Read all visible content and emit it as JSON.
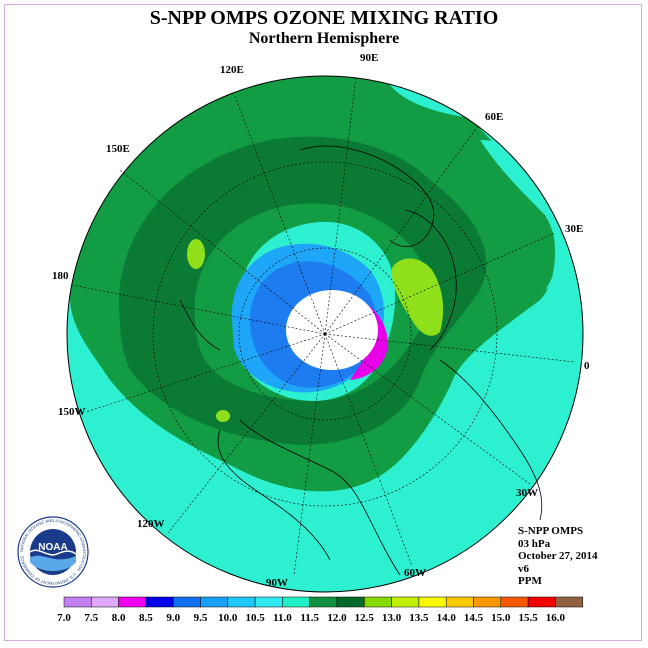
{
  "title": "S-NPP OMPS OZONE MIXING RATIO",
  "subtitle": "Northern Hemisphere",
  "longitude_labels": [
    "90E",
    "60E",
    "30E",
    "0",
    "30W",
    "60W",
    "90W",
    "120W",
    "150W",
    "180",
    "150E",
    "120E"
  ],
  "info": {
    "instrument": "S-NPP OMPS",
    "pressure": "03 hPa",
    "date": "October 27, 2014",
    "version": "v6",
    "units": "PPM"
  },
  "logo": {
    "text": "NOAA",
    "ring_text": "NATIONAL OCEANIC AND ATMOSPHERIC ADMINISTRATION · U.S. DEPARTMENT OF COMMERCE"
  },
  "colorbar": {
    "ticks": [
      "7.0",
      "7.5",
      "8.0",
      "8.5",
      "9.0",
      "9.5",
      "10.0",
      "10.5",
      "11.0",
      "11.5",
      "12.0",
      "12.5",
      "13.0",
      "13.5",
      "14.0",
      "14.5",
      "15.0",
      "15.5",
      "16.0"
    ],
    "colors": [
      "#c080f0",
      "#e0a8f8",
      "#f000f0",
      "#0000e8",
      "#1070f0",
      "#18a0f8",
      "#20c8f8",
      "#30e8f0",
      "#20f0c8",
      "#109040",
      "#006828",
      "#88d800",
      "#c0f000",
      "#f8f800",
      "#f8c800",
      "#f89800",
      "#f85800",
      "#f00000",
      "#906040"
    ]
  },
  "map_colors": {
    "outer_teal": "#2df0d0",
    "green_light": "#129c44",
    "green_dark": "#0a7a35",
    "lime": "#8fe01a",
    "blue_light": "#1ea6f8",
    "blue": "#1c7cf0",
    "cyan": "#2ad0f5",
    "magenta": "#e800e8",
    "violet": "#c080f0",
    "no_data": "#ffffff"
  }
}
